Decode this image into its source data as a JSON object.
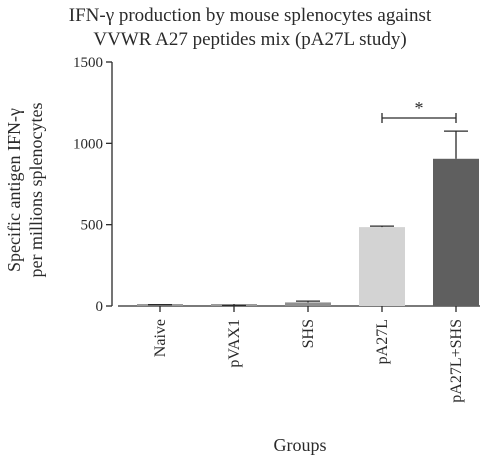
{
  "chart_data": {
    "type": "bar",
    "title_line1": "IFN-γ production by mouse splenocytes against",
    "title_line2": "VVWR A27 peptides mix (pA27L study)",
    "ylabel_line1": "Specific antigen IFN-γ",
    "ylabel_line2": "per millions splenocytes",
    "xlabel": "Groups",
    "categories": [
      "Naive",
      "pVAX1",
      "SHS",
      "pA27L",
      "pA27L+SHS"
    ],
    "values": [
      5,
      2,
      22,
      485,
      905
    ],
    "errors": [
      3,
      1,
      8,
      6,
      170
    ],
    "colors": [
      "#9a9a9a",
      "#9a9a9a",
      "#8f8f8f",
      "#d3d3d3",
      "#5f5f5f"
    ],
    "ylim": [
      0,
      1500
    ],
    "yticks": [
      0,
      500,
      1000,
      1500
    ],
    "significance": {
      "from": "pA27L",
      "to": "pA27L+SHS",
      "label": "*"
    },
    "grid": false,
    "legend": "none"
  }
}
